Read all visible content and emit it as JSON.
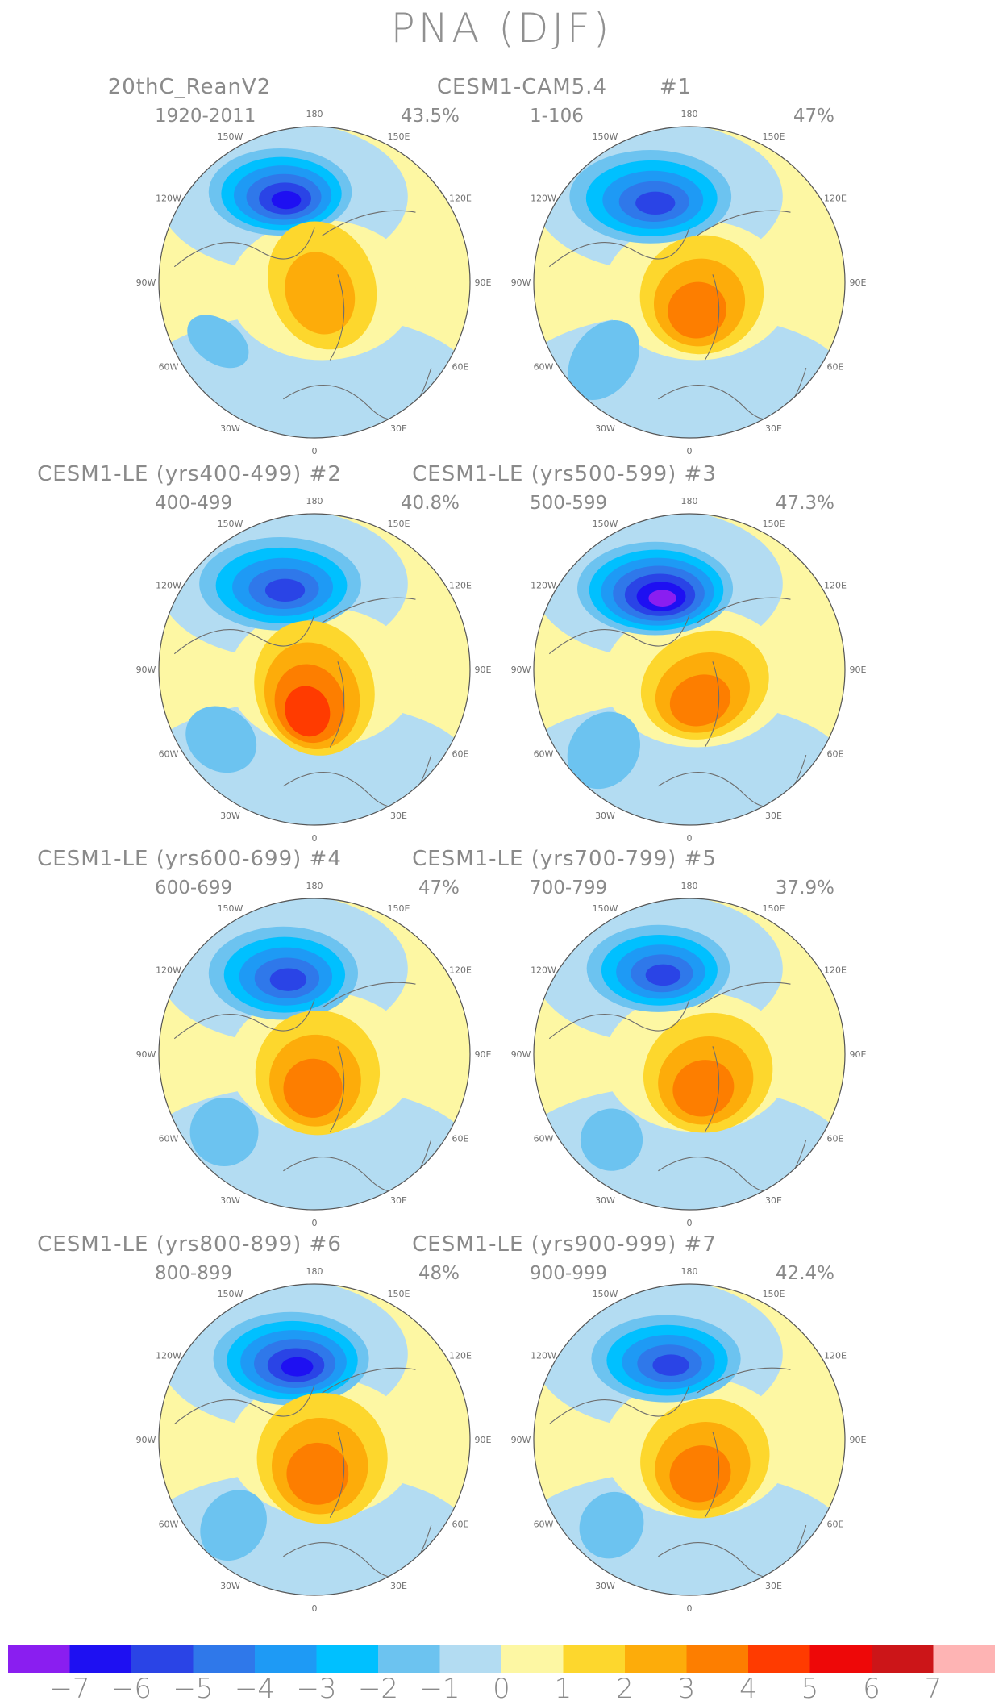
{
  "title": "PNA (DJF)",
  "panels": [
    {
      "title": "20thC_ReanV2",
      "years": "1920-2011",
      "percent": "43.5%",
      "low": {
        "dx": -0.22,
        "dy": -0.58,
        "rx": 0.46,
        "ry": 0.28,
        "peak": -6
      },
      "high1": {
        "dx": 0.05,
        "dy": 0.02,
        "rx": 0.34,
        "ry": 0.42,
        "peak": 2
      },
      "low2": {
        "dx": -0.62,
        "dy": 0.38,
        "rx": 0.22,
        "ry": 0.14,
        "peak": -2
      }
    },
    {
      "title": "CESM1-CAM5.4       #1",
      "years": "1-106",
      "percent": "47%",
      "low": {
        "dx": -0.25,
        "dy": -0.55,
        "rx": 0.52,
        "ry": 0.3,
        "peak": -5
      },
      "high1": {
        "dx": 0.08,
        "dy": 0.08,
        "rx": 0.4,
        "ry": 0.38,
        "peak": 3
      },
      "low2": {
        "dx": -0.55,
        "dy": 0.5,
        "rx": 0.2,
        "ry": 0.28,
        "peak": -2
      }
    },
    {
      "title": "CESM1-LE (yrs400-499) #2",
      "years": "400-499",
      "percent": "40.8%",
      "low": {
        "dx": -0.22,
        "dy": -0.55,
        "rx": 0.52,
        "ry": 0.3,
        "peak": -5
      },
      "high1": {
        "dx": 0.0,
        "dy": 0.12,
        "rx": 0.38,
        "ry": 0.44,
        "peak": 4
      },
      "low2": {
        "dx": -0.6,
        "dy": 0.45,
        "rx": 0.24,
        "ry": 0.2,
        "peak": -2
      }
    },
    {
      "title": "CESM1-LE (yrs500-599) #3",
      "years": "500-599",
      "percent": "47.3%",
      "low": {
        "dx": -0.22,
        "dy": -0.52,
        "rx": 0.5,
        "ry": 0.3,
        "peak": -7
      },
      "high1": {
        "dx": 0.1,
        "dy": 0.1,
        "rx": 0.42,
        "ry": 0.34,
        "peak": 3
      },
      "low2": {
        "dx": -0.55,
        "dy": 0.52,
        "rx": 0.22,
        "ry": 0.26,
        "peak": -2
      }
    },
    {
      "title": "CESM1-LE (yrs600-699) #4",
      "years": "600-699",
      "percent": "47%",
      "low": {
        "dx": -0.2,
        "dy": -0.52,
        "rx": 0.48,
        "ry": 0.3,
        "peak": -5
      },
      "high1": {
        "dx": 0.02,
        "dy": 0.12,
        "rx": 0.4,
        "ry": 0.4,
        "peak": 3
      },
      "low2": {
        "dx": -0.58,
        "dy": 0.5,
        "rx": 0.22,
        "ry": 0.22,
        "peak": -2
      }
    },
    {
      "title": "CESM1-LE (yrs700-799) #5",
      "years": "700-799",
      "percent": "37.9%",
      "low": {
        "dx": -0.2,
        "dy": -0.55,
        "rx": 0.46,
        "ry": 0.28,
        "peak": -5
      },
      "high1": {
        "dx": 0.12,
        "dy": 0.12,
        "rx": 0.42,
        "ry": 0.38,
        "peak": 3
      },
      "low2": {
        "dx": -0.5,
        "dy": 0.55,
        "rx": 0.2,
        "ry": 0.2,
        "peak": -2
      }
    },
    {
      "title": "CESM1-LE (yrs800-899) #6",
      "years": "800-899",
      "percent": "48%",
      "low": {
        "dx": -0.15,
        "dy": -0.52,
        "rx": 0.5,
        "ry": 0.3,
        "peak": -6
      },
      "high1": {
        "dx": 0.05,
        "dy": 0.12,
        "rx": 0.42,
        "ry": 0.42,
        "peak": 3
      },
      "low2": {
        "dx": -0.52,
        "dy": 0.55,
        "rx": 0.2,
        "ry": 0.24,
        "peak": -2
      }
    },
    {
      "title": "CESM1-LE (yrs900-999) #7",
      "years": "900-999",
      "percent": "42.4%",
      "low": {
        "dx": -0.15,
        "dy": -0.52,
        "rx": 0.48,
        "ry": 0.28,
        "peak": -5
      },
      "high1": {
        "dx": 0.1,
        "dy": 0.12,
        "rx": 0.42,
        "ry": 0.38,
        "peak": 3
      },
      "low2": {
        "dx": -0.5,
        "dy": 0.55,
        "rx": 0.2,
        "ry": 0.22,
        "peak": -2
      }
    }
  ],
  "longitude_labels": [
    "180",
    "150E",
    "120E",
    "90E",
    "60E",
    "30E",
    "0",
    "30W",
    "60W",
    "90W",
    "120W",
    "150W"
  ],
  "colorbar": {
    "colors": [
      "#8a1ef0",
      "#1e10f2",
      "#2a44e6",
      "#2f78ea",
      "#1e9af5",
      "#00c0ff",
      "#6cc3f0",
      "#b3dcf2",
      "#fdf7a3",
      "#fdd72d",
      "#fdac0a",
      "#fd7e00",
      "#ff3b00",
      "#ee0808",
      "#cc1518",
      "#feb4b4"
    ],
    "ticks": [
      "−7",
      "−6",
      "−5",
      "−4",
      "−3",
      "−2",
      "−1",
      "0",
      "1",
      "2",
      "3",
      "4",
      "5",
      "6",
      "7"
    ]
  }
}
